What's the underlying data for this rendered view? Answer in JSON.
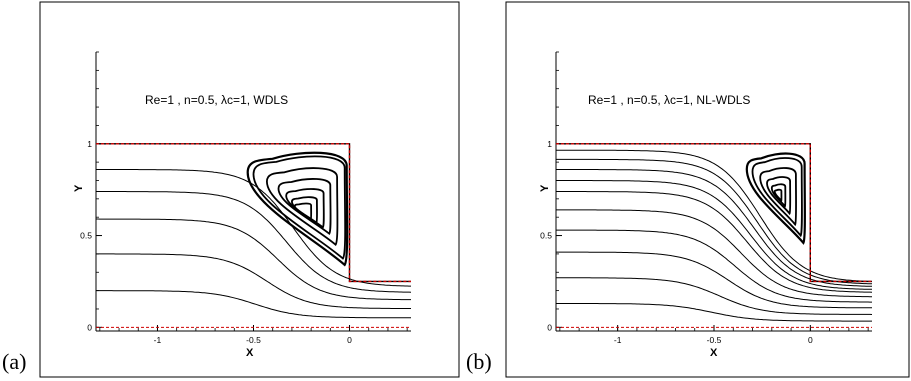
{
  "chart_data": [
    {
      "type": "line",
      "panel_label": "(a)",
      "annotation": "Re=1 , n=0.5, λc=1, WDLS",
      "xlabel": "X",
      "ylabel": "Y",
      "xlim": [
        -1.32,
        0.32
      ],
      "ylim": [
        -0.02,
        1.5
      ],
      "x_ticks": [
        -1,
        -0.5,
        0
      ],
      "x_tick_labels": [
        "-1",
        "-0.5",
        "0"
      ],
      "y_ticks": [
        0,
        0.5,
        1
      ],
      "y_tick_labels": [
        "0",
        "0.5",
        "1"
      ],
      "boundary_color": "#d00000",
      "boundary": {
        "x": [
          -1.32,
          0,
          0,
          0.32
        ],
        "y": [
          1,
          1,
          0.25,
          0.25
        ]
      },
      "streamlines": [
        {
          "y_in": 0.2,
          "y_out": 0.052
        },
        {
          "y_in": 0.4,
          "y_out": 0.102
        },
        {
          "y_in": 0.59,
          "y_out": 0.15
        },
        {
          "y_in": 0.74,
          "y_out": 0.19
        },
        {
          "y_in": 0.86,
          "y_out": 0.222
        }
      ],
      "vortex": {
        "core": [
          -0.25,
          0.625
        ],
        "loops": [
          {
            "top": 0.955,
            "bottom": 0.34,
            "left": -0.53,
            "right": -0.015
          },
          {
            "top": 0.935,
            "bottom": 0.375,
            "left": -0.5,
            "right": -0.025
          },
          {
            "top": 0.87,
            "bottom": 0.45,
            "left": -0.43,
            "right": -0.065
          },
          {
            "top": 0.81,
            "bottom": 0.51,
            "left": -0.37,
            "right": -0.1
          },
          {
            "top": 0.755,
            "bottom": 0.545,
            "left": -0.33,
            "right": -0.135
          },
          {
            "top": 0.71,
            "bottom": 0.57,
            "left": -0.3,
            "right": -0.17
          },
          {
            "top": 0.675,
            "bottom": 0.59,
            "left": -0.285,
            "right": -0.2
          }
        ]
      }
    },
    {
      "type": "line",
      "panel_label": "(b)",
      "annotation": "Re=1 , n=0.5, λc=1, NL-WDLS",
      "xlabel": "X",
      "ylabel": "Y",
      "xlim": [
        -1.32,
        0.32
      ],
      "ylim": [
        -0.02,
        1.5
      ],
      "x_ticks": [
        -1,
        -0.5,
        0
      ],
      "x_tick_labels": [
        "-1",
        "-0.5",
        "0"
      ],
      "y_ticks": [
        0,
        0.5,
        1
      ],
      "y_tick_labels": [
        "0",
        "0.5",
        "1"
      ],
      "boundary_color": "#d00000",
      "boundary": {
        "x": [
          -1.32,
          0,
          0,
          0.32
        ],
        "y": [
          1,
          1,
          0.25,
          0.25
        ]
      },
      "streamlines": [
        {
          "y_in": 0.13,
          "y_out": 0.034
        },
        {
          "y_in": 0.27,
          "y_out": 0.07
        },
        {
          "y_in": 0.41,
          "y_out": 0.106
        },
        {
          "y_in": 0.53,
          "y_out": 0.137
        },
        {
          "y_in": 0.64,
          "y_out": 0.166
        },
        {
          "y_in": 0.74,
          "y_out": 0.19
        },
        {
          "y_in": 0.8,
          "y_out": 0.205
        },
        {
          "y_in": 0.86,
          "y_out": 0.221
        },
        {
          "y_in": 0.915,
          "y_out": 0.234
        },
        {
          "y_in": 0.965,
          "y_out": 0.246
        }
      ],
      "vortex": {
        "core": [
          -0.17,
          0.72
        ],
        "loops": [
          {
            "top": 0.95,
            "bottom": 0.46,
            "left": -0.33,
            "right": -0.03
          },
          {
            "top": 0.925,
            "bottom": 0.5,
            "left": -0.3,
            "right": -0.045
          },
          {
            "top": 0.87,
            "bottom": 0.56,
            "left": -0.26,
            "right": -0.075
          },
          {
            "top": 0.82,
            "bottom": 0.62,
            "left": -0.225,
            "right": -0.105
          },
          {
            "top": 0.78,
            "bottom": 0.66,
            "left": -0.2,
            "right": -0.13
          },
          {
            "top": 0.75,
            "bottom": 0.69,
            "left": -0.185,
            "right": -0.15
          }
        ]
      }
    }
  ]
}
